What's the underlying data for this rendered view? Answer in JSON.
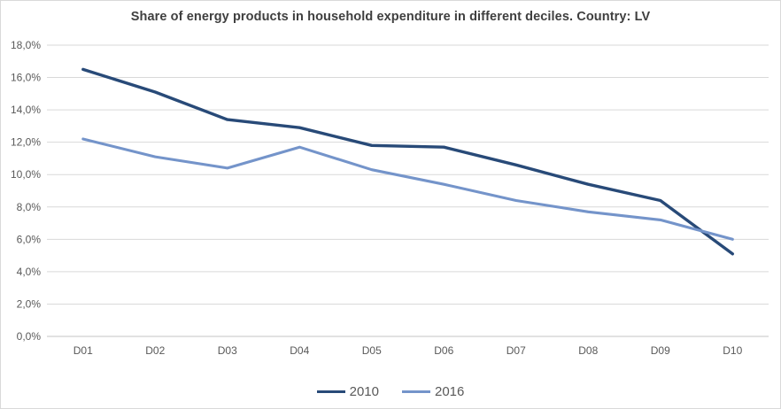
{
  "title": "Share of energy products in household expenditure in different deciles. Country: LV",
  "chart_data": {
    "type": "line",
    "title": "Share of energy products in household expenditure in different deciles. Country: LV",
    "categories": [
      "D01",
      "D02",
      "D03",
      "D04",
      "D05",
      "D06",
      "D07",
      "D08",
      "D09",
      "D10"
    ],
    "series": [
      {
        "name": "2010",
        "color": "#284a78",
        "values": [
          16.5,
          15.1,
          13.4,
          12.9,
          11.8,
          11.7,
          10.6,
          9.4,
          8.4,
          5.1
        ]
      },
      {
        "name": "2016",
        "color": "#7494ca",
        "values": [
          12.2,
          11.1,
          10.4,
          11.7,
          10.3,
          9.4,
          8.4,
          7.7,
          7.2,
          6.0
        ]
      }
    ],
    "xlabel": "",
    "ylabel": "",
    "ylim": [
      0,
      18
    ],
    "ytick_step": 2,
    "ytick_labels": [
      "0,0%",
      "2,0%",
      "4,0%",
      "6,0%",
      "8,0%",
      "10,0%",
      "12,0%",
      "14,0%",
      "16,0%",
      "18,0%"
    ],
    "grid": true,
    "legend_position": "bottom"
  },
  "colors": {
    "series_2010": "#284a78",
    "series_2016": "#7494ca",
    "gridline": "#d9d9d9",
    "axis_line": "#c6c6c6",
    "axis_label": "#595959",
    "title": "#3f3f3f",
    "border": "#d9d9d9",
    "background": "#ffffff"
  }
}
